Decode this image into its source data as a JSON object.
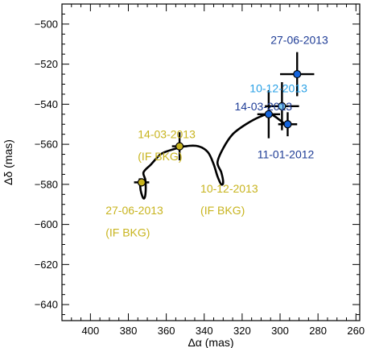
{
  "chart_data": {
    "type": "scatter",
    "xlabel": "Δα (mas)",
    "ylabel": "Δδ (mas)",
    "xlim": [
      415,
      258
    ],
    "ylim": [
      -648,
      -490
    ],
    "x_reversed": true,
    "x_ticks": [
      400,
      380,
      360,
      340,
      320,
      300,
      280,
      260
    ],
    "y_ticks": [
      -640,
      -620,
      -600,
      -580,
      -560,
      -540,
      -520,
      -500
    ],
    "grid": false,
    "colors": {
      "bkg": "#c8b41e",
      "dark_blue": "#1464dc",
      "light_blue": "#78c8f0",
      "text_dark_blue": "#1e3c96",
      "text_light_blue": "#28a0e6",
      "text_bkg": "#c8b41e",
      "track": "#000000"
    },
    "series": [
      {
        "group": "background",
        "points": [
          {
            "x": 373,
            "y": -579,
            "xerr": 4,
            "yerr": 2,
            "color_key": "bkg"
          },
          {
            "x": 353,
            "y": -561,
            "xerr": 4,
            "yerr": 7,
            "color_key": "bkg"
          }
        ]
      },
      {
        "group": "target",
        "points": [
          {
            "x": 306,
            "y": -545,
            "xerr": 6,
            "yerr": 12,
            "color_key": "dark_blue"
          },
          {
            "x": 299,
            "y": -541,
            "xerr": 9,
            "yerr": 12,
            "color_key": "light_blue"
          },
          {
            "x": 296,
            "y": -550,
            "xerr": 5,
            "yerr": 6,
            "color_key": "dark_blue"
          },
          {
            "x": 291,
            "y": -525,
            "xerr": 9,
            "yerr": 11,
            "color_key": "dark_blue"
          }
        ]
      }
    ],
    "track": [
      [
        374,
        -577
      ],
      [
        373.5,
        -583
      ],
      [
        372,
        -587
      ],
      [
        371,
        -585
      ],
      [
        371,
        -578
      ],
      [
        372,
        -574
      ],
      [
        368,
        -570
      ],
      [
        363,
        -565
      ],
      [
        358,
        -563
      ],
      [
        350,
        -561
      ],
      [
        343,
        -561
      ],
      [
        338,
        -564
      ],
      [
        335,
        -570
      ],
      [
        333,
        -576
      ],
      [
        331,
        -580
      ],
      [
        330,
        -579
      ],
      [
        331,
        -574
      ],
      [
        333,
        -569
      ],
      [
        330,
        -562
      ],
      [
        325,
        -555
      ],
      [
        318,
        -550
      ],
      [
        310,
        -546
      ],
      [
        305,
        -545
      ],
      [
        300,
        -548
      ],
      [
        296,
        -551
      ]
    ],
    "annotations": [
      {
        "text": "27-06-2013",
        "x": 305,
        "y": -510,
        "color_key": "text_dark_blue"
      },
      {
        "text": "10-12-2013",
        "x": 316,
        "y": -534,
        "color_key": "text_light_blue"
      },
      {
        "text": "14-03-2013",
        "x": 324,
        "y": -543,
        "color_key": "text_dark_blue"
      },
      {
        "text": "11-01-2012",
        "x": 312,
        "y": -567,
        "color_key": "text_dark_blue"
      },
      {
        "text": "14-03-2013",
        "x": 375,
        "y": -557,
        "color_key": "text_bkg"
      },
      {
        "text": "(IF BKG)",
        "x": 375,
        "y": -568,
        "color_key": "text_bkg"
      },
      {
        "text": "10-12-2013",
        "x": 342,
        "y": -584,
        "color_key": "text_bkg"
      },
      {
        "text": "(IF BKG)",
        "x": 342,
        "y": -595,
        "color_key": "text_bkg"
      },
      {
        "text": "27-06-2013",
        "x": 392,
        "y": -595,
        "color_key": "text_bkg"
      },
      {
        "text": "(IF BKG)",
        "x": 392,
        "y": -606,
        "color_key": "text_bkg"
      }
    ]
  }
}
